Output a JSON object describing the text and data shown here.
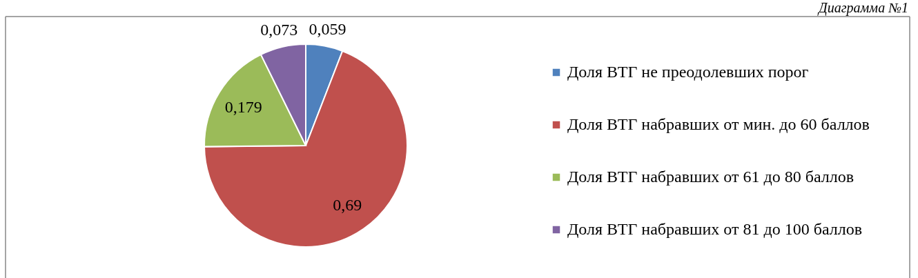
{
  "chart_data": {
    "type": "pie",
    "annotations": [
      "Диаграмма №1"
    ],
    "categories": [
      "Доля ВТГ не преодолевших порог",
      "Доля ВТГ набравших от мин. до 60 баллов",
      "Доля ВТГ набравших от 61 до 80 баллов",
      "Доля ВТГ набравших от 81 до 100 баллов"
    ],
    "values": [
      0.059,
      0.69,
      0.179,
      0.073
    ],
    "value_labels": [
      "0,059",
      "0,69",
      "0,179",
      "0,073"
    ],
    "colors": [
      "#4f81bd",
      "#c0504d",
      "#9bbb59",
      "#8064a2"
    ],
    "legend": "right"
  }
}
